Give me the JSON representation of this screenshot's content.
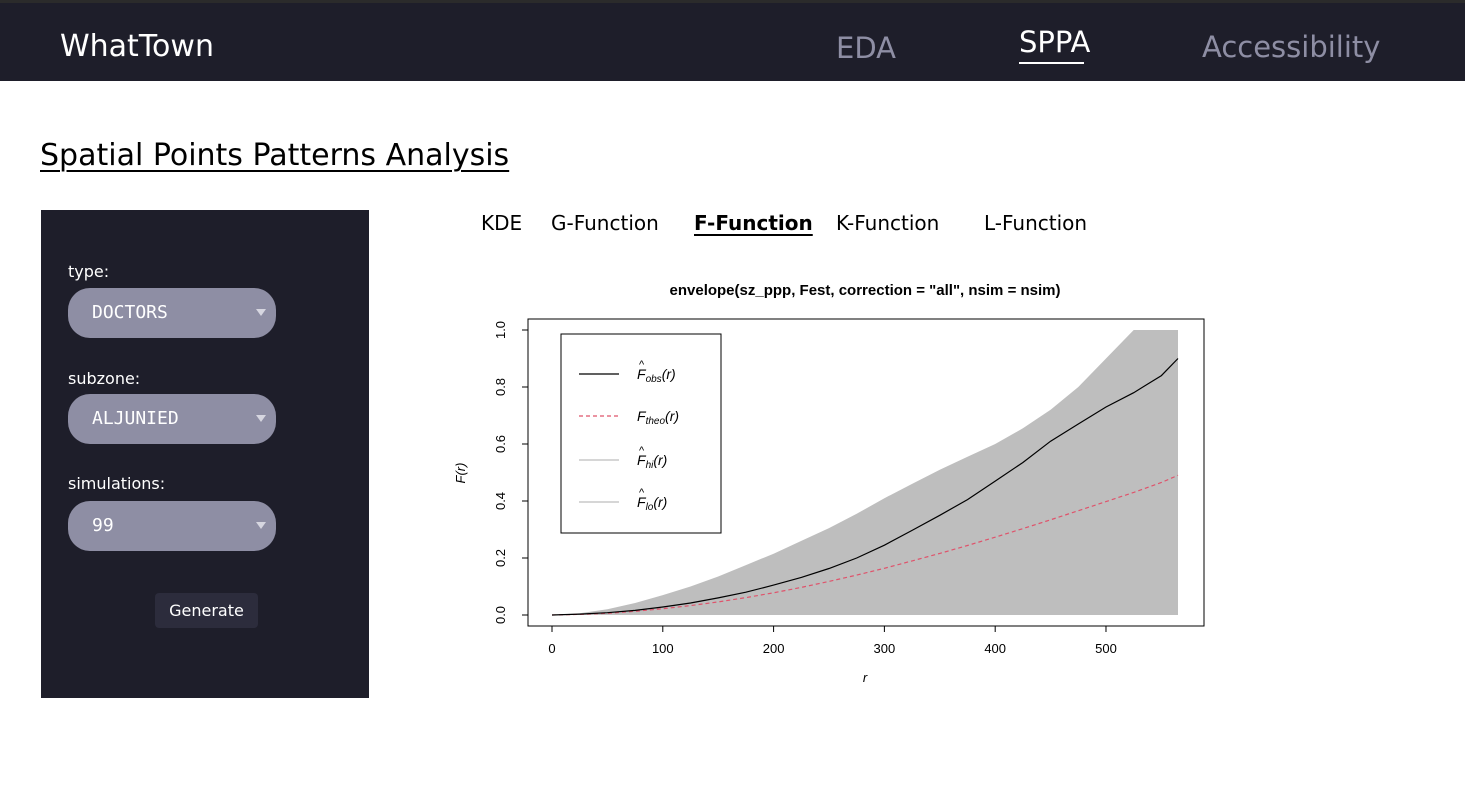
{
  "header": {
    "brand": "WhatTown",
    "nav": {
      "eda": "EDA",
      "sppa": "SPPA",
      "accessibility": "Accessibility"
    }
  },
  "page": {
    "title": "Spatial Points Patterns Analysis"
  },
  "panel": {
    "type_label": "type:",
    "type_value": "DOCTORS",
    "subzone_label": "subzone:",
    "subzone_value": "ALJUNIED",
    "simulations_label": "simulations:",
    "simulations_value": "99",
    "generate_label": "Generate"
  },
  "tabs": {
    "kde": "KDE",
    "g": "G-Function",
    "f": "F-Function",
    "k": "K-Function",
    "l": "L-Function"
  },
  "chart_data": {
    "type": "line",
    "title": "envelope(sz_ppp, Fest, correction = \"all\", nsim = nsim)",
    "xlabel": "r",
    "ylabel": "F(r)",
    "xlim": [
      0,
      565
    ],
    "ylim": [
      0,
      1.0
    ],
    "xticks": [
      "0",
      "100",
      "200",
      "300",
      "400",
      "500"
    ],
    "yticks": [
      "0.0",
      "0.2",
      "0.4",
      "0.6",
      "0.8",
      "1.0"
    ],
    "legend_position": "top-left",
    "legend": [
      {
        "base": "F",
        "sub": "obs",
        "arg": "(r)",
        "hat": true,
        "style": "solid",
        "color": "#000000"
      },
      {
        "base": "F",
        "sub": "theo",
        "arg": "(r)",
        "hat": false,
        "style": "dashed",
        "color": "#df536b"
      },
      {
        "base": "F",
        "sub": "hi",
        "arg": "(r)",
        "hat": true,
        "style": "solid",
        "color": "#bebebe"
      },
      {
        "base": "F",
        "sub": "lo",
        "arg": "(r)",
        "hat": true,
        "style": "solid",
        "color": "#bebebe"
      }
    ],
    "r": [
      0,
      25,
      50,
      75,
      100,
      125,
      150,
      175,
      200,
      225,
      250,
      275,
      300,
      325,
      350,
      375,
      400,
      425,
      450,
      475,
      500,
      525,
      550,
      565
    ],
    "series": [
      {
        "values": [
          0,
          0.003,
          0.008,
          0.016,
          0.028,
          0.042,
          0.06,
          0.08,
          0.105,
          0.132,
          0.163,
          0.2,
          0.245,
          0.297,
          0.35,
          0.405,
          0.47,
          0.535,
          0.61,
          0.67,
          0.73,
          0.78,
          0.84,
          0.9
        ]
      },
      {
        "values": [
          0,
          0.002,
          0.006,
          0.013,
          0.022,
          0.033,
          0.046,
          0.061,
          0.078,
          0.097,
          0.118,
          0.14,
          0.164,
          0.19,
          0.216,
          0.244,
          0.273,
          0.303,
          0.334,
          0.366,
          0.398,
          0.43,
          0.465,
          0.49
        ]
      },
      {
        "values": [
          0,
          0.006,
          0.02,
          0.042,
          0.07,
          0.1,
          0.135,
          0.175,
          0.215,
          0.26,
          0.305,
          0.355,
          0.41,
          0.46,
          0.51,
          0.555,
          0.6,
          0.655,
          0.72,
          0.8,
          0.9,
          1.0,
          1.0,
          1.0
        ]
      },
      {
        "values": [
          0,
          0,
          0,
          0,
          0,
          0,
          0,
          0,
          0,
          0,
          0,
          0,
          0,
          0,
          0,
          0,
          0,
          0,
          0,
          0,
          0,
          0,
          0,
          0
        ]
      }
    ],
    "band_color": "#bebebe"
  }
}
